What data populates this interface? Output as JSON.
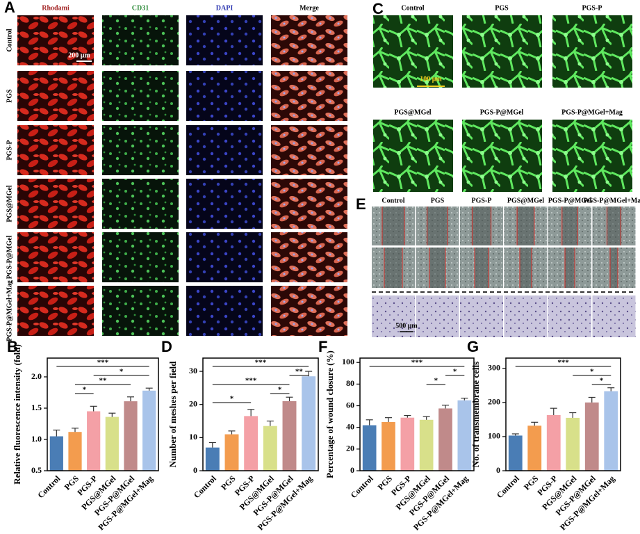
{
  "figure": {
    "panel_a": {
      "label": "A",
      "columns": [
        "Rhodami",
        "CD31",
        "DAPI",
        "Merge"
      ],
      "rows": [
        "Control",
        "PGS",
        "PGS-P",
        "PGS@MGel",
        "PGS-P@MGel",
        "PGS-P@MGel+Mag"
      ],
      "scale_bar": "200 μm"
    },
    "panel_c": {
      "label": "C",
      "groups": [
        "Control",
        "PGS",
        "PGS-P",
        "PGS@MGel",
        "PGS-P@MGel",
        "PGS-P@MGel+Mag"
      ],
      "scale_bar": "100 μm"
    },
    "panel_e": {
      "label": "E",
      "groups": [
        "Control",
        "PGS",
        "PGS-P",
        "PGS@MGel",
        "PGS-P@MGel",
        "PGS-P@MGel+Mag"
      ],
      "scale_bar": "500 μm"
    }
  },
  "chart_data": [
    {
      "type": "bar",
      "label": "B",
      "ylabel": "Relative fluorescence intensity (fold)",
      "categories": [
        "Control",
        "PGS",
        "PGS-P",
        "PGS@MGel",
        "PGS-P@MGel",
        "PGS-P@MGel+Mag"
      ],
      "values": [
        1.05,
        1.12,
        1.45,
        1.36,
        1.61,
        1.78
      ],
      "error": [
        0.1,
        0.06,
        0.08,
        0.06,
        0.07,
        0.04
      ],
      "colors": [
        "#4a7db5",
        "#f39c4e",
        "#f4a0a6",
        "#d8e08a",
        "#c08a8a",
        "#a9c4ea"
      ],
      "ylim": [
        0.5,
        2.3
      ],
      "yticks": [
        0.5,
        {
          "value": 1,
          "label": "1.0"
        },
        1.5,
        {
          "value": 2,
          "label": "2.0"
        }
      ],
      "annotations": [
        {
          "text": "*",
          "from": "PGS",
          "to": "PGS-P"
        },
        {
          "text": "**",
          "from": "PGS",
          "to": "PGS-P@MGel"
        },
        {
          "text": "*",
          "from": "PGS-P",
          "to": "PGS-P@MGel+Mag"
        },
        {
          "text": "***",
          "from": "Control",
          "to": "PGS-P@MGel+Mag"
        }
      ]
    },
    {
      "type": "bar",
      "label": "D",
      "ylabel": "Number of meshes per field",
      "categories": [
        "Control",
        "PGS",
        "PGS-P",
        "PGS@MGel",
        "PGS-P@MGel",
        "PGS-P@MGel+Mag"
      ],
      "values": [
        7,
        11,
        16.5,
        13.5,
        21,
        28.5
      ],
      "error": [
        1.5,
        1,
        2,
        1.5,
        1.2,
        1.5
      ],
      "colors": [
        "#4a7db5",
        "#f39c4e",
        "#f4a0a6",
        "#d8e08a",
        "#c08a8a",
        "#a9c4ea"
      ],
      "ylim": [
        0,
        34
      ],
      "yticks": [
        0,
        10,
        20,
        30
      ],
      "annotations": [
        {
          "text": "*",
          "from": "Control",
          "to": "PGS-P"
        },
        {
          "text": "*",
          "from": "PGS@MGel",
          "to": "PGS-P@MGel"
        },
        {
          "text": "***",
          "from": "Control",
          "to": "PGS-P@MGel"
        },
        {
          "text": "**",
          "from": "PGS-P@MGel",
          "to": "PGS-P@MGel+Mag"
        },
        {
          "text": "***",
          "from": "Control",
          "to": "PGS-P@MGel+Mag"
        }
      ]
    },
    {
      "type": "bar",
      "label": "F",
      "ylabel": "Percentage of wound closure (%)",
      "categories": [
        "Control",
        "PGS",
        "PGS-P",
        "PGS@MGel",
        "PGS-P@MGel",
        "PGS-P@MGel+Mag"
      ],
      "values": [
        42,
        45,
        49,
        47,
        57.5,
        65
      ],
      "error": [
        5,
        4,
        2,
        3,
        3,
        2
      ],
      "colors": [
        "#4a7db5",
        "#f39c4e",
        "#f4a0a6",
        "#d8e08a",
        "#c08a8a",
        "#a9c4ea"
      ],
      "ylim": [
        0,
        104
      ],
      "yticks": [
        0,
        20,
        40,
        60,
        80,
        100
      ],
      "annotations": [
        {
          "text": "*",
          "from": "PGS@MGel",
          "to": "PGS-P@MGel"
        },
        {
          "text": "*",
          "from": "PGS-P@MGel",
          "to": "PGS-P@MGel+Mag"
        },
        {
          "text": "***",
          "from": "Control",
          "to": "PGS-P@MGel+Mag"
        }
      ]
    },
    {
      "type": "bar",
      "label": "G",
      "ylabel": "No. of transmembrane cells",
      "categories": [
        "Control",
        "PGS",
        "PGS-P",
        "PGS@MGel",
        "PGS-P@MGel",
        "PGS-P@MGel+Mag"
      ],
      "values": [
        103,
        132,
        163,
        155,
        200,
        233
      ],
      "error": [
        5,
        10,
        20,
        15,
        15,
        10
      ],
      "colors": [
        "#4a7db5",
        "#f39c4e",
        "#f4a0a6",
        "#d8e08a",
        "#c08a8a",
        "#a9c4ea"
      ],
      "ylim": [
        0,
        330
      ],
      "yticks": [
        0,
        100,
        200,
        300
      ],
      "annotations": [
        {
          "text": "*",
          "from": "PGS-P@MGel",
          "to": "PGS-P@MGel+Mag"
        },
        {
          "text": "*",
          "from": "PGS@MGel",
          "to": "PGS-P@MGel+Mag"
        },
        {
          "text": "***",
          "from": "Control",
          "to": "PGS-P@MGel+Mag"
        }
      ]
    }
  ]
}
